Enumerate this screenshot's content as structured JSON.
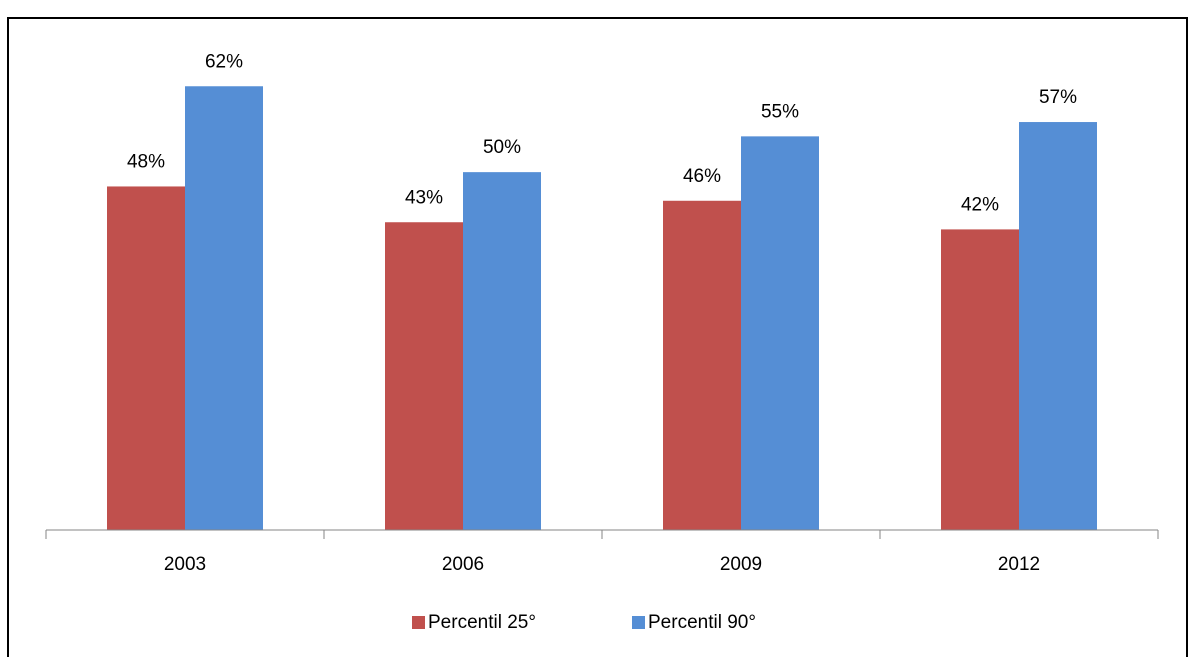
{
  "chart_data": {
    "type": "bar",
    "categories": [
      "2003",
      "2006",
      "2009",
      "2012"
    ],
    "series": [
      {
        "name": "Percentil 25°",
        "color": "#c0504d",
        "values": [
          48,
          43,
          46,
          42
        ],
        "value_labels": [
          "48%",
          "43%",
          "46%",
          "42%"
        ]
      },
      {
        "name": "Percentil 90°",
        "color": "#558ed5",
        "values": [
          62,
          50,
          55,
          57
        ],
        "value_labels": [
          "62%",
          "50%",
          "55%",
          "57%"
        ]
      }
    ],
    "ylim": [
      0,
      70
    ],
    "legend": "bottom"
  }
}
